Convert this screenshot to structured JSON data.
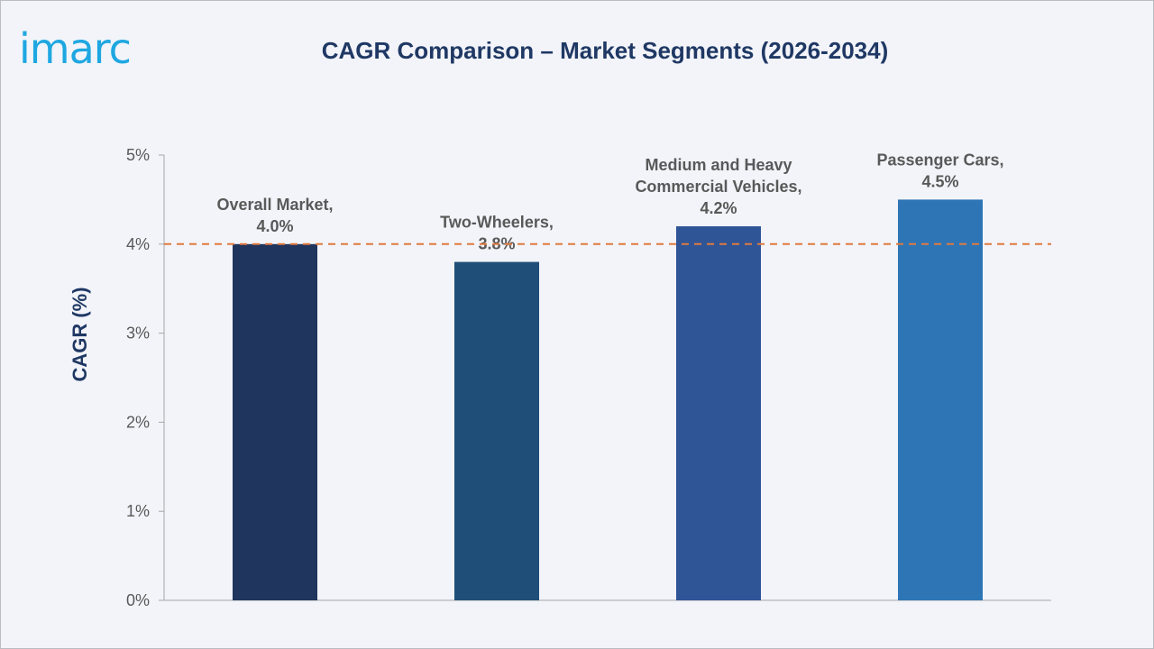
{
  "brand": {
    "logo_text": "imarc",
    "logo_color": "#1ea7e1"
  },
  "chart_data": {
    "type": "bar",
    "title": "CAGR Comparison – Market Segments (2026-2034)",
    "ylabel": "CAGR (%)",
    "xlabel": "",
    "ylim": [
      0,
      5
    ],
    "yticks": [
      0,
      1,
      2,
      3,
      4,
      5
    ],
    "ytick_labels": [
      "0%",
      "1%",
      "2%",
      "3%",
      "4%",
      "5%"
    ],
    "grid": false,
    "legend": "none",
    "categories": [
      "Overall Market",
      "Two-Wheelers",
      "Medium and Heavy Commercial Vehicles",
      "Passenger Cars"
    ],
    "values": [
      4.0,
      3.8,
      4.2,
      4.5
    ],
    "data_labels": [
      [
        "Overall Market,",
        "4.0%"
      ],
      [
        "Two-Wheelers,",
        "3.8%"
      ],
      [
        "Medium and Heavy",
        "Commercial Vehicles,",
        "4.2%"
      ],
      [
        "Passenger Cars,",
        "4.5%"
      ]
    ],
    "bar_colors": [
      "#1f355e",
      "#1f4e79",
      "#2f5597",
      "#2e75b6"
    ],
    "reference_line": {
      "value": 4.0,
      "style": "dashed",
      "color": "#e07a3f"
    },
    "colors": {
      "title": "#1f3864",
      "ylabel": "#1f3864",
      "tick_label": "#595959",
      "data_label": "#595959",
      "axis": "#a6a6a6"
    }
  }
}
